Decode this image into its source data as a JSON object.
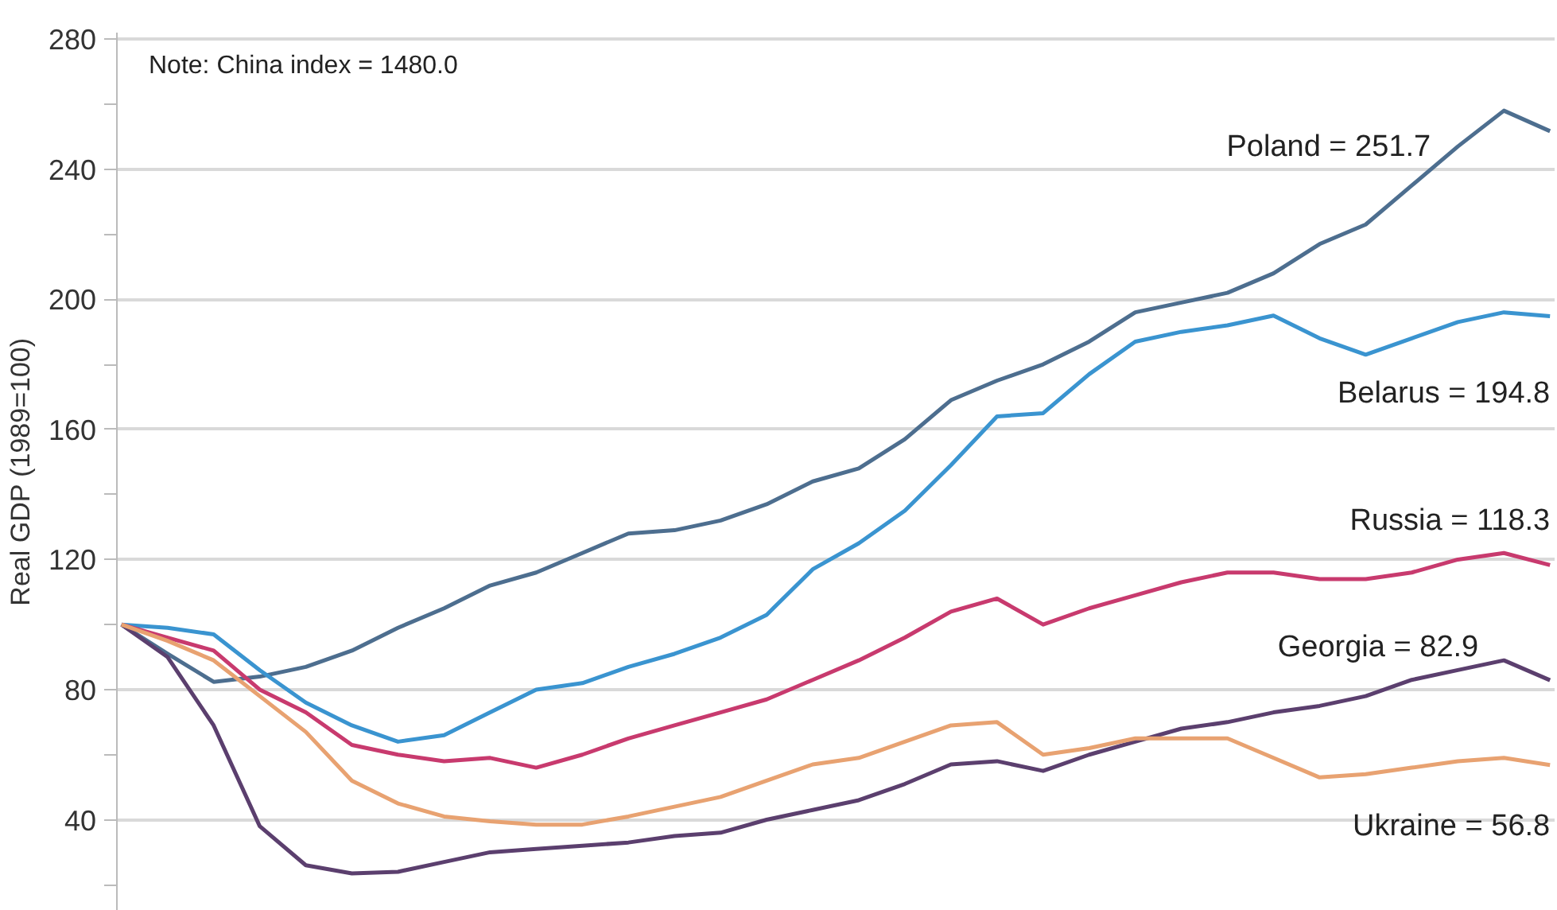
{
  "chart_data": {
    "type": "line",
    "ylabel": "Real GDP (1989=100)",
    "categories": [
      null,
      null,
      null,
      null,
      null,
      null,
      null,
      null,
      null,
      null,
      null,
      null,
      null,
      null,
      null,
      null,
      null,
      null,
      null,
      null,
      null,
      null,
      null,
      null,
      null,
      null,
      null,
      null,
      null,
      null,
      null,
      null
    ],
    "ylim": [
      12,
      282
    ],
    "yticks": [
      {
        "value": 20,
        "label": null
      },
      40,
      {
        "value": 60,
        "label": null
      },
      80,
      {
        "value": 100,
        "label": null
      },
      120,
      {
        "value": 140,
        "label": null
      },
      160,
      {
        "value": 180,
        "label": null
      },
      200,
      {
        "value": 220,
        "label": null
      },
      240,
      {
        "value": 260,
        "label": null
      },
      280
    ],
    "grid": "y",
    "tick_labels": "y",
    "marker": "none",
    "line_style": "solid",
    "series": [
      {
        "color": "#4d6e8f",
        "values": [
          100,
          91,
          82.4,
          84,
          87,
          92,
          99,
          105,
          112,
          116,
          122,
          128,
          129,
          132,
          137,
          144,
          148,
          157,
          169,
          175,
          180,
          187,
          196,
          199,
          202,
          208,
          217,
          223,
          235,
          247,
          258,
          251.7
        ]
      },
      {
        "color": "#3a94d0",
        "values": [
          100,
          99,
          97,
          86,
          76,
          69,
          64,
          66,
          73,
          80,
          82,
          87,
          91,
          96,
          103,
          117,
          125,
          135,
          149,
          164,
          165,
          177,
          187,
          190,
          192,
          195,
          188,
          183,
          188,
          193,
          196,
          194.8
        ]
      },
      {
        "color": "#c83a6e",
        "values": [
          100,
          96,
          92,
          80,
          73,
          63,
          60,
          58,
          59,
          56,
          60,
          65,
          69,
          73,
          77,
          83,
          89,
          96,
          104,
          108,
          100,
          105,
          109,
          113,
          116,
          116,
          114,
          114,
          116,
          120,
          122,
          118.3
        ]
      },
      {
        "color": "#5b3f6e",
        "values": [
          100,
          90,
          69,
          38,
          26,
          23.5,
          24,
          27,
          30,
          31,
          32,
          33,
          35,
          36,
          40,
          43,
          46,
          51,
          57,
          58,
          55,
          60,
          64,
          68,
          70,
          73,
          75,
          78,
          83,
          86,
          89,
          82.9
        ]
      },
      {
        "color": "#e8a271",
        "values": [
          100,
          95,
          89,
          78,
          67,
          52,
          45,
          41,
          39.5,
          38.5,
          38.5,
          41,
          44,
          47,
          52,
          57,
          59,
          64,
          69,
          70,
          60,
          62,
          65,
          65,
          65,
          59,
          53,
          54,
          56,
          58,
          59,
          56.8
        ]
      }
    ],
    "annotations": [
      "Note: China index = 1480.0",
      "Poland = 251.7",
      "Belarus = 194.8",
      "Russia = 118.3",
      "Georgia = 82.9",
      "Ukraine = 56.8"
    ]
  }
}
